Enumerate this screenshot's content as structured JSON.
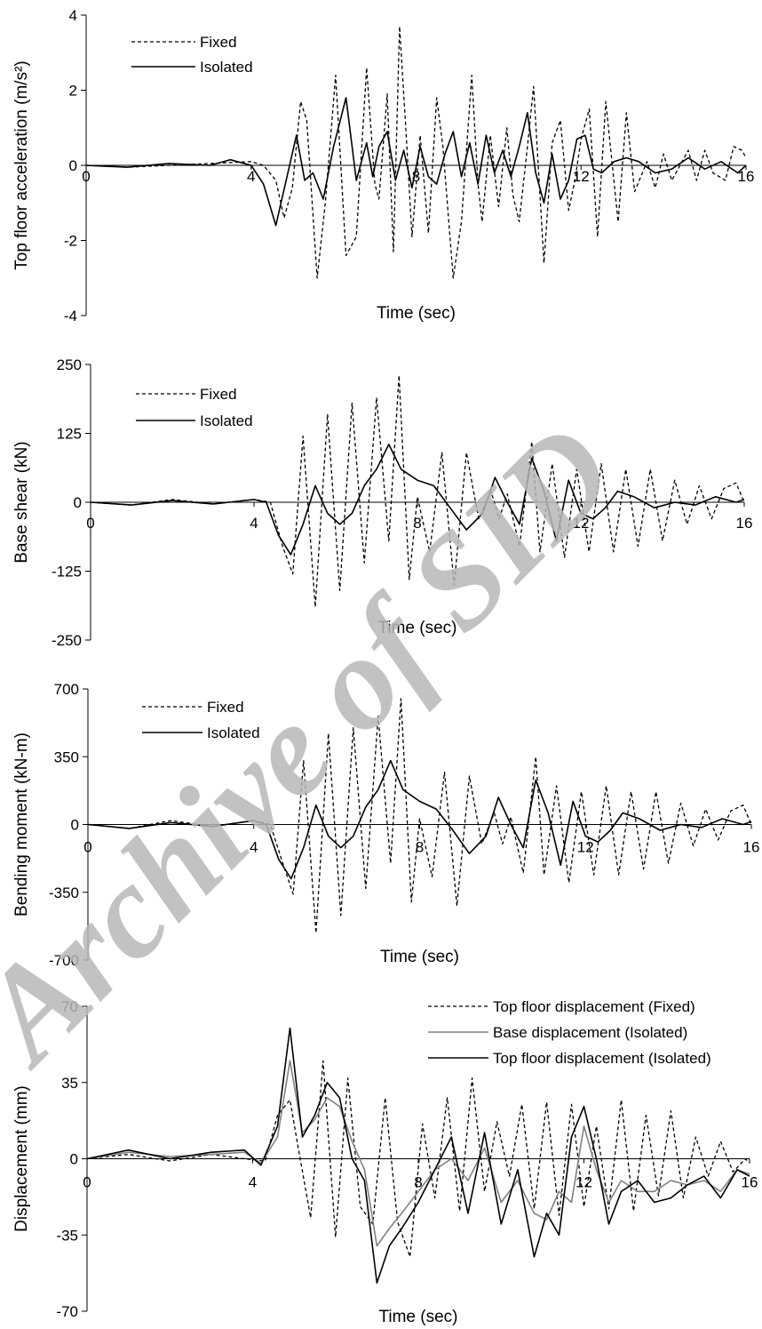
{
  "watermark": "Archive of SID",
  "chart_data": [
    {
      "type": "line",
      "ylabel": "Top floor acceleration (m/s²)",
      "xlabel": "Time (sec)",
      "xlim": [
        0,
        16
      ],
      "ylim": [
        -4,
        4
      ],
      "xticks": [
        0,
        4,
        8,
        12,
        16
      ],
      "yticks": [
        -4,
        -2,
        0,
        2,
        4
      ],
      "legend_position": "top-left",
      "series": [
        {
          "name": "Fixed",
          "style": "dashed",
          "color": "#000000",
          "x": [
            0,
            1,
            2,
            3,
            4,
            4.3,
            4.6,
            4.8,
            5.0,
            5.2,
            5.35,
            5.6,
            5.8,
            6.05,
            6.3,
            6.55,
            6.8,
            7.0,
            7.1,
            7.3,
            7.45,
            7.6,
            7.75,
            7.9,
            8.1,
            8.3,
            8.5,
            8.65,
            8.9,
            9.1,
            9.35,
            9.5,
            9.6,
            9.8,
            10.0,
            10.2,
            10.35,
            10.5,
            10.7,
            10.85,
            11.1,
            11.3,
            11.5,
            11.7,
            11.85,
            12.0,
            12.2,
            12.4,
            12.6,
            12.9,
            13.1,
            13.3,
            13.6,
            13.8,
            14.0,
            14.2,
            14.6,
            14.8,
            15.0,
            15.2,
            15.5,
            15.7,
            15.9,
            16
          ],
          "y": [
            0,
            -0.05,
            0,
            0.05,
            0.1,
            0,
            -0.4,
            -1.4,
            -0.6,
            1.7,
            1.2,
            -3.0,
            -1.0,
            2.4,
            -2.4,
            -1.9,
            2.6,
            -0.5,
            -0.9,
            1.9,
            -2.3,
            3.7,
            1.0,
            -1.9,
            0.8,
            -1.8,
            1.8,
            0.5,
            -3.0,
            -1.5,
            2.4,
            -0.5,
            -1.5,
            0.8,
            -1.1,
            1.0,
            -0.8,
            -1.5,
            0.5,
            2.1,
            -2.6,
            0.6,
            1.2,
            -1.2,
            -0.4,
            0.7,
            1.5,
            -1.9,
            1.7,
            -1.5,
            1.4,
            -0.7,
            0.1,
            -0.6,
            0.3,
            -0.4,
            0.4,
            -0.4,
            0.4,
            -0.2,
            -0.4,
            0.5,
            0.4,
            0.2
          ]
        },
        {
          "name": "Isolated",
          "style": "solid",
          "color": "#000000",
          "x": [
            0,
            1,
            2,
            3,
            3.5,
            4,
            4.3,
            4.6,
            4.85,
            5.1,
            5.3,
            5.5,
            5.75,
            6.0,
            6.3,
            6.55,
            6.8,
            6.95,
            7.1,
            7.3,
            7.5,
            7.7,
            7.9,
            8.1,
            8.3,
            8.5,
            8.7,
            8.9,
            9.1,
            9.3,
            9.5,
            9.7,
            9.9,
            10.1,
            10.3,
            10.5,
            10.7,
            10.9,
            11.1,
            11.3,
            11.5,
            11.7,
            11.9,
            12.1,
            12.3,
            12.5,
            12.8,
            13.1,
            13.4,
            13.8,
            14.2,
            14.6,
            15.0,
            15.4,
            15.8,
            16
          ],
          "y": [
            0,
            -0.05,
            0.05,
            0,
            0.15,
            0,
            -0.5,
            -1.6,
            -0.4,
            0.8,
            -0.4,
            -0.2,
            -0.9,
            0.5,
            1.8,
            -0.4,
            0.6,
            -0.3,
            0.5,
            0.9,
            -0.4,
            0.4,
            -0.6,
            0.5,
            -0.3,
            -0.5,
            0.3,
            0.9,
            -0.3,
            0.6,
            -0.5,
            0.8,
            -0.2,
            0.4,
            -0.3,
            0.5,
            1.4,
            -0.2,
            -1.0,
            0.3,
            -0.9,
            -0.4,
            0.7,
            0.8,
            -0.1,
            -0.2,
            0.1,
            0.2,
            0.1,
            -0.2,
            -0.1,
            0.2,
            -0.1,
            0.1,
            -0.2,
            0
          ]
        }
      ]
    },
    {
      "type": "line",
      "ylabel": "Base shear (kN)",
      "xlabel": "Time (sec)",
      "xlim": [
        0,
        16
      ],
      "ylim": [
        -250,
        250
      ],
      "xticks": [
        0,
        4,
        8,
        12,
        16
      ],
      "yticks": [
        -250,
        -125,
        0,
        125,
        250
      ],
      "legend_position": "top-left",
      "series": [
        {
          "name": "Fixed",
          "style": "dashed",
          "color": "#000000",
          "x": [
            0,
            1,
            2,
            3,
            4,
            4.4,
            4.7,
            4.95,
            5.2,
            5.5,
            5.8,
            6.1,
            6.4,
            6.7,
            7.0,
            7.3,
            7.55,
            7.8,
            8.0,
            8.3,
            8.6,
            8.9,
            9.2,
            9.5,
            9.8,
            10.0,
            10.2,
            10.5,
            10.8,
            11.0,
            11.3,
            11.6,
            11.9,
            12.2,
            12.5,
            12.8,
            13.1,
            13.4,
            13.7,
            14.0,
            14.3,
            14.6,
            14.9,
            15.2,
            15.5,
            15.8,
            16
          ],
          "y": [
            0,
            -5,
            5,
            -3,
            5,
            0,
            -80,
            -130,
            120,
            -190,
            160,
            -160,
            180,
            -110,
            190,
            -70,
            230,
            -140,
            10,
            -90,
            90,
            -150,
            90,
            -30,
            20,
            -30,
            15,
            -80,
            110,
            -90,
            70,
            -100,
            60,
            -90,
            70,
            -90,
            60,
            -80,
            60,
            -70,
            40,
            -40,
            30,
            -30,
            25,
            35,
            0
          ]
        },
        {
          "name": "Isolated",
          "style": "solid",
          "color": "#000000",
          "x": [
            0,
            1,
            2,
            3,
            4,
            4.3,
            4.6,
            4.9,
            5.2,
            5.5,
            5.8,
            6.1,
            6.4,
            6.7,
            7.0,
            7.3,
            7.6,
            8.0,
            8.4,
            8.8,
            9.2,
            9.6,
            9.9,
            10.2,
            10.5,
            10.8,
            11.1,
            11.4,
            11.7,
            12.0,
            12.3,
            12.6,
            12.9,
            13.3,
            13.8,
            14.3,
            14.8,
            15.3,
            15.8,
            16
          ],
          "y": [
            0,
            -5,
            3,
            -3,
            5,
            0,
            -60,
            -95,
            -40,
            30,
            -20,
            -40,
            -20,
            30,
            60,
            105,
            60,
            40,
            30,
            -10,
            -50,
            -20,
            45,
            0,
            -40,
            80,
            20,
            -70,
            40,
            -20,
            -30,
            -10,
            20,
            10,
            -10,
            0,
            -5,
            10,
            0,
            5
          ]
        }
      ]
    },
    {
      "type": "line",
      "ylabel": "Bending moment (kN-m)",
      "xlabel": "Time (sec)",
      "xlim": [
        0,
        16
      ],
      "ylim": [
        -700,
        700
      ],
      "xticks": [
        0,
        4,
        8,
        12,
        16
      ],
      "yticks": [
        -700,
        -350,
        0,
        350,
        700
      ],
      "legend_position": "top-left",
      "series": [
        {
          "name": "Fixed",
          "style": "dashed",
          "color": "#000000",
          "x": [
            0,
            1,
            2,
            3,
            4,
            4.4,
            4.7,
            4.95,
            5.2,
            5.5,
            5.8,
            6.1,
            6.4,
            6.7,
            7.0,
            7.3,
            7.55,
            7.8,
            8.0,
            8.3,
            8.6,
            8.9,
            9.2,
            9.5,
            9.8,
            10.0,
            10.2,
            10.5,
            10.8,
            11.0,
            11.3,
            11.6,
            11.9,
            12.2,
            12.5,
            12.8,
            13.1,
            13.4,
            13.7,
            14.0,
            14.3,
            14.6,
            14.9,
            15.2,
            15.5,
            15.8,
            16
          ],
          "y": [
            0,
            -20,
            20,
            -10,
            20,
            0,
            -200,
            -360,
            330,
            -560,
            470,
            -470,
            500,
            -330,
            560,
            -200,
            650,
            -400,
            30,
            -270,
            270,
            -420,
            250,
            -100,
            60,
            -100,
            40,
            -250,
            350,
            -260,
            200,
            -300,
            170,
            -260,
            200,
            -260,
            170,
            -230,
            170,
            -200,
            110,
            -110,
            80,
            -80,
            70,
            100,
            0
          ]
        },
        {
          "name": "Isolated",
          "style": "solid",
          "color": "#000000",
          "x": [
            0,
            1,
            2,
            3,
            4,
            4.3,
            4.6,
            4.9,
            5.2,
            5.5,
            5.8,
            6.1,
            6.4,
            6.7,
            7.0,
            7.3,
            7.6,
            8.0,
            8.4,
            8.8,
            9.2,
            9.6,
            9.9,
            10.2,
            10.5,
            10.8,
            11.1,
            11.4,
            11.7,
            12.0,
            12.3,
            12.6,
            12.9,
            13.3,
            13.8,
            14.3,
            14.8,
            15.3,
            15.8,
            16
          ],
          "y": [
            0,
            -20,
            10,
            -10,
            20,
            0,
            -180,
            -280,
            -120,
            100,
            -60,
            -120,
            -60,
            90,
            180,
            330,
            180,
            120,
            80,
            -30,
            -150,
            -60,
            140,
            0,
            -120,
            230,
            60,
            -210,
            120,
            -60,
            -90,
            -30,
            60,
            30,
            -30,
            0,
            -15,
            30,
            0,
            15
          ]
        }
      ]
    },
    {
      "type": "line",
      "ylabel": "Displacement (mm)",
      "xlabel": "Time (sec)",
      "xlim": [
        0,
        16
      ],
      "ylim": [
        -70,
        70
      ],
      "xticks": [
        0,
        4,
        8,
        12,
        16
      ],
      "yticks": [
        -70,
        -35,
        0,
        35,
        70
      ],
      "legend_position": "top-right",
      "series": [
        {
          "name": "Top floor displacement (Fixed)",
          "style": "dashed",
          "color": "#000000",
          "x": [
            0,
            1,
            2,
            3,
            3.8,
            4.3,
            4.6,
            4.9,
            5.1,
            5.4,
            5.7,
            6.0,
            6.3,
            6.6,
            6.9,
            7.2,
            7.5,
            7.8,
            8.1,
            8.4,
            8.7,
            9.0,
            9.3,
            9.6,
            9.9,
            10.2,
            10.5,
            10.8,
            11.1,
            11.4,
            11.7,
            12.0,
            12.3,
            12.6,
            12.9,
            13.2,
            13.5,
            13.8,
            14.1,
            14.4,
            14.7,
            15.0,
            15.3,
            15.6,
            15.9,
            16
          ],
          "y": [
            0,
            2,
            -1,
            2,
            0,
            -1,
            20,
            27,
            5,
            -27,
            45,
            -36,
            37,
            -22,
            -30,
            28,
            -29,
            -45,
            16,
            -18,
            28,
            -24,
            37,
            -15,
            17,
            -8,
            25,
            -23,
            26,
            -26,
            25,
            -22,
            15,
            -23,
            27,
            -24,
            20,
            -17,
            22,
            -18,
            10,
            -8,
            8,
            -6,
            0,
            -2
          ]
        },
        {
          "name": "Base displacement (Isolated)",
          "style": "solid",
          "color": "#808080",
          "x": [
            0,
            1,
            2,
            3,
            3.8,
            4.2,
            4.6,
            4.9,
            5.2,
            5.5,
            5.8,
            6.1,
            6.4,
            6.7,
            7.0,
            7.3,
            7.6,
            8.0,
            8.4,
            8.8,
            9.2,
            9.6,
            10.0,
            10.4,
            10.8,
            11.1,
            11.4,
            11.7,
            12.0,
            12.3,
            12.6,
            12.9,
            13.3,
            13.7,
            14.1,
            14.5,
            14.9,
            15.3,
            15.7,
            16
          ],
          "y": [
            0,
            3,
            1,
            2,
            3,
            -2,
            10,
            45,
            12,
            18,
            28,
            24,
            8,
            -5,
            -40,
            -32,
            -25,
            -15,
            -5,
            0,
            -10,
            5,
            -20,
            -10,
            -25,
            -28,
            -15,
            -20,
            15,
            -5,
            -20,
            -10,
            -15,
            -15,
            -10,
            -12,
            -10,
            -15,
            -5,
            -7
          ]
        },
        {
          "name": "Top floor displacement (Isolated)",
          "style": "solid",
          "color": "#000000",
          "x": [
            0,
            1,
            2,
            3,
            3.8,
            4.2,
            4.6,
            4.9,
            5.2,
            5.5,
            5.8,
            6.1,
            6.4,
            6.7,
            7.0,
            7.3,
            7.6,
            8.0,
            8.4,
            8.8,
            9.2,
            9.6,
            10.0,
            10.4,
            10.8,
            11.1,
            11.4,
            11.7,
            12.0,
            12.3,
            12.6,
            12.9,
            13.3,
            13.7,
            14.1,
            14.5,
            14.9,
            15.3,
            15.7,
            16
          ],
          "y": [
            0,
            4,
            0,
            3,
            4,
            -3,
            15,
            60,
            10,
            20,
            35,
            28,
            0,
            -10,
            -57,
            -40,
            -32,
            -20,
            -5,
            10,
            -25,
            12,
            -30,
            -5,
            -45,
            -25,
            -35,
            10,
            24,
            0,
            -30,
            -15,
            -10,
            -20,
            -18,
            -12,
            -8,
            -18,
            -5,
            -8
          ]
        }
      ]
    }
  ]
}
